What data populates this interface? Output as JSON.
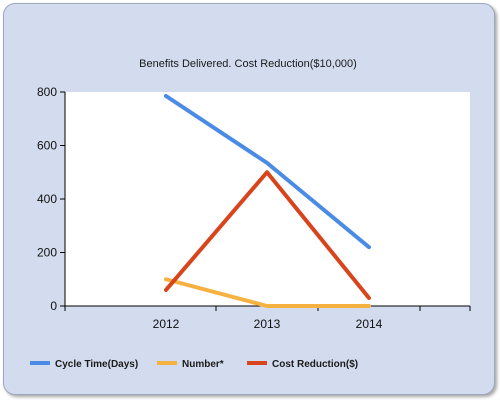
{
  "chart_data": {
    "type": "line",
    "title": "Benefits Delivered. Cost Reduction($10,000)",
    "categories": [
      "2012",
      "2013",
      "2014"
    ],
    "xlabel": "",
    "ylabel": "",
    "ylim": [
      0,
      800
    ],
    "yticks": [
      0,
      200,
      400,
      600,
      800
    ],
    "grid": false,
    "legend_position": "bottom-left",
    "series": [
      {
        "name": "Cycle Time(Days)",
        "color": "#4a8be6",
        "values": [
          785,
          535,
          220
        ]
      },
      {
        "name": "Number*",
        "color": "#f6b240",
        "values": [
          100,
          0,
          0
        ]
      },
      {
        "name": "Cost Reduction($)",
        "color": "#d8441c",
        "values": [
          60,
          500,
          30
        ]
      }
    ]
  }
}
